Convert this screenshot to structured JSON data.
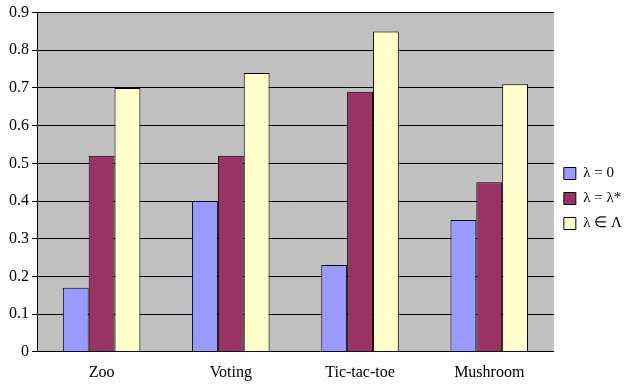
{
  "chart_data": {
    "type": "bar",
    "categories": [
      "Zoo",
      "Voting",
      "Tic-tac-toe",
      "Mushroom"
    ],
    "series": [
      {
        "name": "λ = 0",
        "color": "#9999ff",
        "values": [
          0.17,
          0.4,
          0.23,
          0.35
        ]
      },
      {
        "name": "λ = λ*",
        "color": "#993366",
        "values": [
          0.52,
          0.52,
          0.69,
          0.45
        ]
      },
      {
        "name": "λ ∈ Λ",
        "color": "#ffffcc",
        "values": [
          0.7,
          0.74,
          0.85,
          0.71
        ]
      }
    ],
    "ylim": [
      0,
      0.9
    ],
    "yticks": [
      0,
      0.1,
      0.2,
      0.3,
      0.4,
      0.5,
      0.6,
      0.7,
      0.8,
      0.9
    ],
    "grid": true,
    "legend": "right"
  }
}
